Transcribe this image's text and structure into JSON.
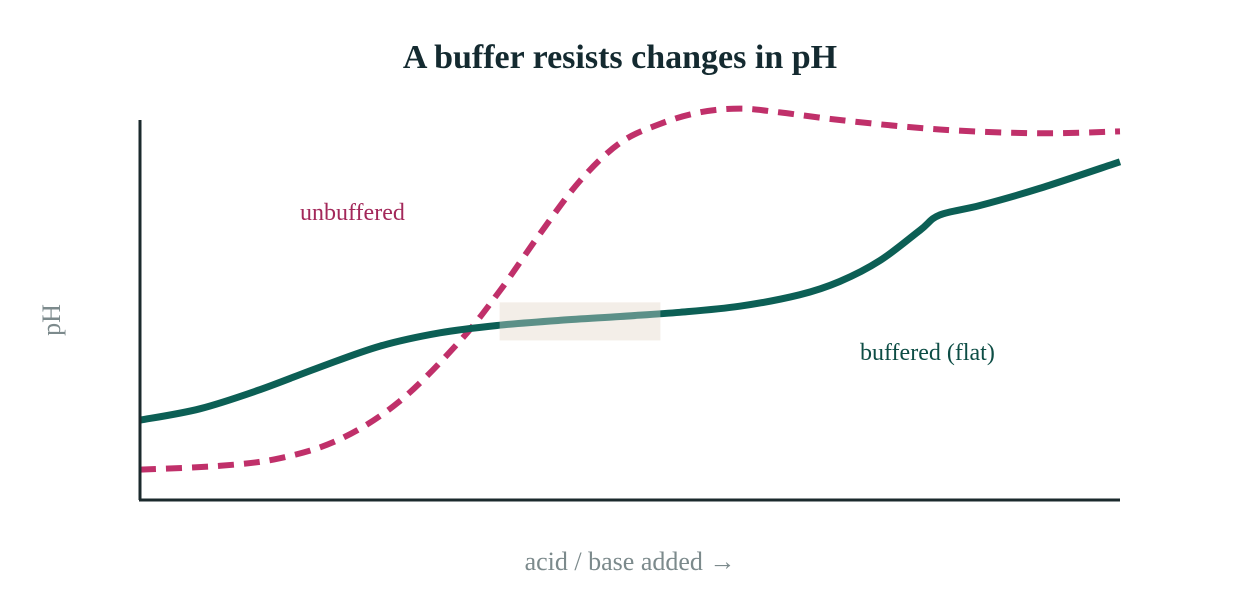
{
  "chart_data": {
    "type": "line",
    "title": "A buffer resists changes in pH",
    "xlabel": "acid / base added →",
    "ylabel": "pH",
    "xlim": [
      0,
      100
    ],
    "ylim": [
      0,
      100
    ],
    "grid": false,
    "legend": "none",
    "ticks": "none",
    "highlight_region": {
      "x": [
        36.7,
        53.1
      ],
      "y": [
        42,
        52
      ],
      "color": "#f3efe8"
    },
    "series": [
      {
        "name": "unbuffered",
        "style": "dashed",
        "color": "#c0306a",
        "label_color": "#a3285a",
        "x": [
          0,
          8.2,
          14.3,
          20.4,
          26.5,
          32.7,
          36.7,
          40.8,
          44.9,
          49,
          53.1,
          57.1,
          61.2,
          65.3,
          71.4,
          81.6,
          91.8,
          100
        ],
        "y": [
          8,
          9,
          11,
          16,
          26,
          42,
          55,
          70,
          84,
          94,
          99,
          102,
          103,
          102,
          100,
          97.5,
          96.5,
          97
        ]
      },
      {
        "name": "buffered (flat)",
        "style": "solid",
        "color": "#0c5f55",
        "label_color": "#0d4d45",
        "x": [
          0,
          6.1,
          12.2,
          18.4,
          24.5,
          30.6,
          36.7,
          42.9,
          49,
          55.1,
          61.2,
          67.3,
          71.4,
          75.5,
          79.6,
          81.6,
          85.7,
          91.8,
          100
        ],
        "y": [
          21,
          24,
          29,
          35,
          40.5,
          44,
          46,
          47.3,
          48.3,
          49.4,
          51,
          54,
          57.5,
          63,
          71,
          75,
          77.5,
          82,
          89
        ]
      }
    ]
  }
}
